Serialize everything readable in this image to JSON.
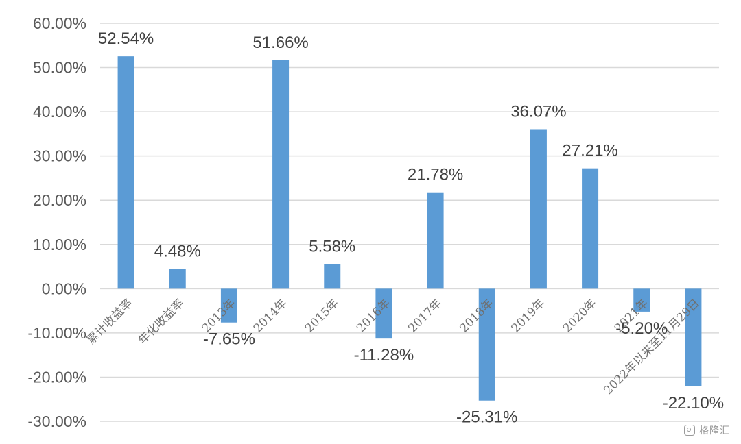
{
  "chart_data": {
    "type": "bar",
    "categories": [
      "累计收益率",
      "年化收益率",
      "2013年",
      "2014年",
      "2015年",
      "2016年",
      "2017年",
      "2018年",
      "2019年",
      "2020年",
      "2021年",
      "2022年以来至11月29日"
    ],
    "values": [
      52.54,
      4.48,
      -7.65,
      51.66,
      5.58,
      -11.28,
      21.78,
      -25.31,
      36.07,
      27.21,
      -5.2,
      -22.1
    ],
    "data_labels": [
      "52.54%",
      "4.48%",
      "-7.65%",
      "51.66%",
      "5.58%",
      "-11.28%",
      "21.78%",
      "-25.31%",
      "36.07%",
      "27.21%",
      "-5.20%",
      "-22.10%"
    ],
    "y_ticks": [
      60,
      50,
      40,
      30,
      20,
      10,
      0,
      -10,
      -20,
      -30
    ],
    "y_tick_labels": [
      "60.00%",
      "50.00%",
      "40.00%",
      "30.00%",
      "20.00%",
      "10.00%",
      "0.00%",
      "-10.00%",
      "-20.00%",
      "-30.00%"
    ],
    "ylim": [
      -30,
      60
    ],
    "grid": true,
    "legend": "none",
    "title": "",
    "xlabel": "",
    "ylabel": "",
    "colors": {
      "bar": "#5b9bd5",
      "grid": "#d9d9d9",
      "tick_text": "#595959",
      "label_text": "#404040"
    }
  },
  "watermark": {
    "text": "格隆汇",
    "icon": "gelonghui-logo-icon"
  }
}
